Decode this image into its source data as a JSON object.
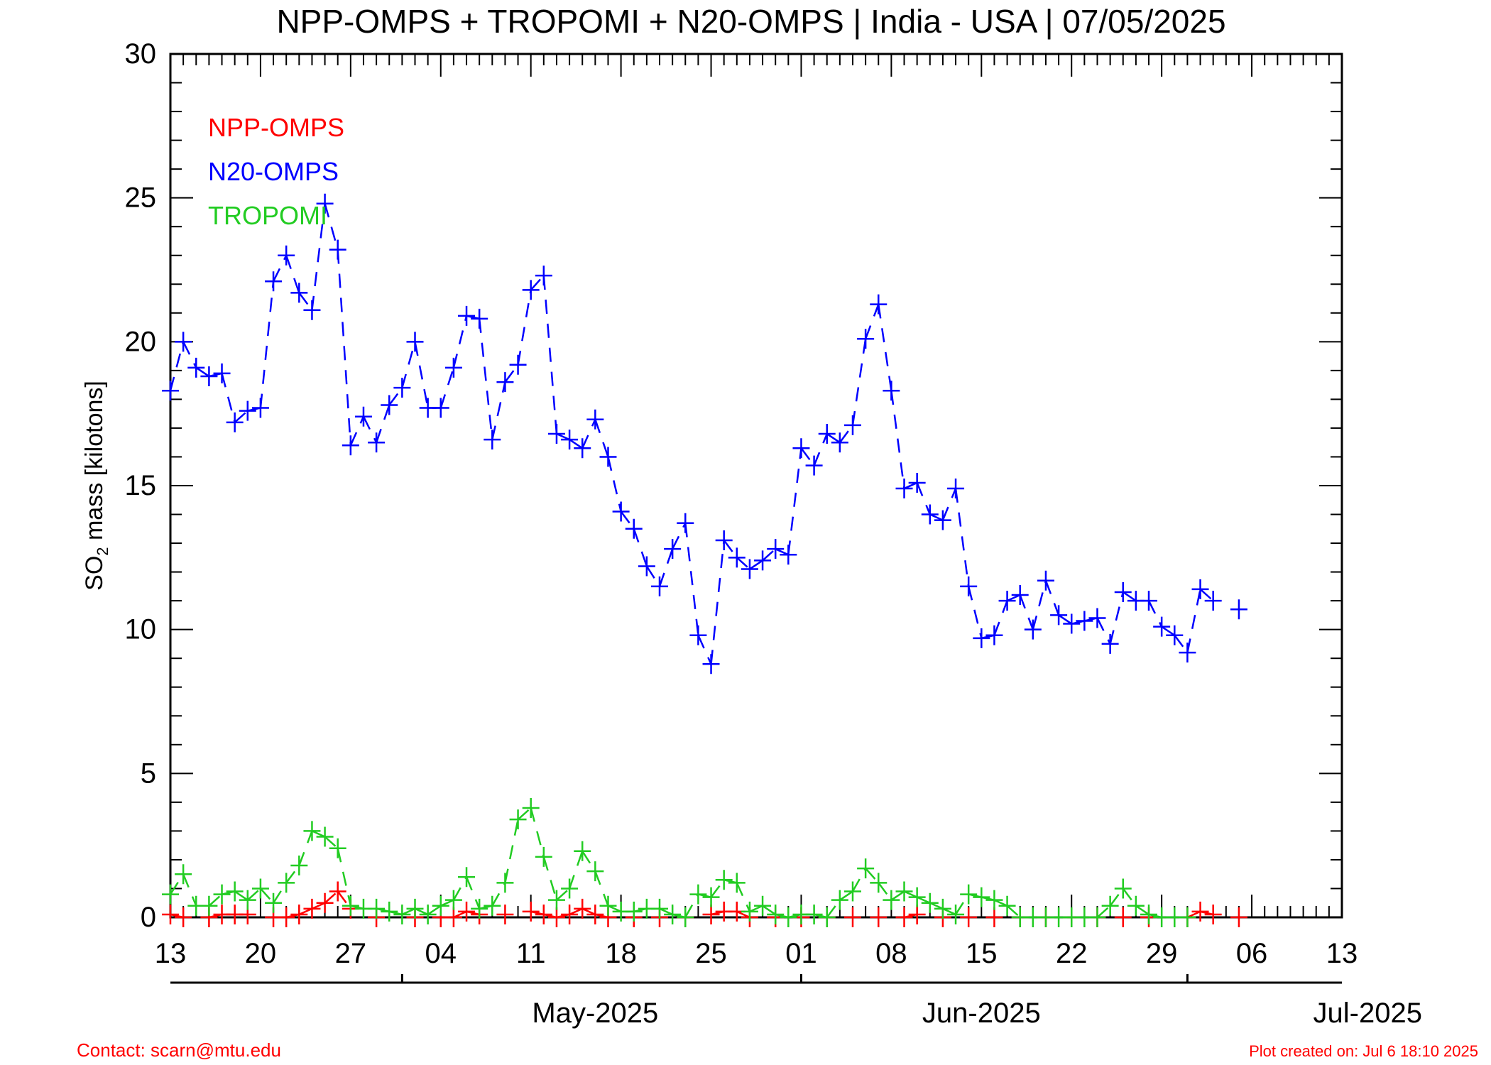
{
  "chart_data": {
    "type": "line",
    "title": "NPP-OMPS + TROPOMI + N20-OMPS | India - USA | 07/05/2025",
    "ylabel_main": "SO",
    "ylabel_sub": "2",
    "ylabel_rest": " mass [kilotons]",
    "ylim": [
      0,
      30
    ],
    "yticks": [
      "0",
      "5",
      "10",
      "15",
      "20",
      "25",
      "30"
    ],
    "xlim": [
      "2025-04-13",
      "2025-07-13"
    ],
    "xtick_dates": [
      "2025-04-13",
      "2025-04-20",
      "2025-04-27",
      "2025-05-04",
      "2025-05-11",
      "2025-05-18",
      "2025-05-25",
      "2025-06-01",
      "2025-06-08",
      "2025-06-15",
      "2025-06-22",
      "2025-06-29",
      "2025-07-06",
      "2025-07-13"
    ],
    "xtick_labels": [
      "13",
      "20",
      "27",
      "04",
      "11",
      "18",
      "25",
      "01",
      "08",
      "15",
      "22",
      "29",
      "06",
      "13"
    ],
    "month_labels": [
      "May-2025",
      "Jun-2025",
      "Jul-2025"
    ],
    "month_dates": [
      "2025-05-01",
      "2025-06-01",
      "2025-07-01"
    ],
    "month_label_dates": [
      "2025-05-16",
      "2025-06-15",
      "2025-07-15"
    ],
    "legend_position": "top-left",
    "series": [
      {
        "name": "NPP-OMPS",
        "color": "#ff0000",
        "values": [
          [
            "2025-04-13",
            0.1
          ],
          [
            "2025-04-14",
            0.0
          ],
          [
            "2025-04-16",
            0.0
          ],
          [
            "2025-04-17",
            0.1
          ],
          [
            "2025-04-18",
            0.1
          ],
          [
            "2025-04-19",
            0.1
          ],
          [
            "2025-04-21",
            0.0
          ],
          [
            "2025-04-22",
            0.0
          ],
          [
            "2025-04-23",
            0.1
          ],
          [
            "2025-04-24",
            0.3
          ],
          [
            "2025-04-25",
            0.5
          ],
          [
            "2025-04-26",
            0.9
          ],
          [
            "2025-04-27",
            0.3
          ],
          [
            "2025-04-29",
            0.0
          ],
          [
            "2025-05-02",
            0.0
          ],
          [
            "2025-05-04",
            0.0
          ],
          [
            "2025-05-05",
            0.0
          ],
          [
            "2025-05-06",
            0.2
          ],
          [
            "2025-05-07",
            0.1
          ],
          [
            "2025-05-09",
            0.1
          ],
          [
            "2025-05-11",
            0.2
          ],
          [
            "2025-05-12",
            0.1
          ],
          [
            "2025-05-13",
            0.0
          ],
          [
            "2025-05-14",
            0.1
          ],
          [
            "2025-05-15",
            0.3
          ],
          [
            "2025-05-16",
            0.1
          ],
          [
            "2025-05-17",
            0.0
          ],
          [
            "2025-05-19",
            0.0
          ],
          [
            "2025-05-21",
            0.0
          ],
          [
            "2025-05-23",
            0.0
          ],
          [
            "2025-05-25",
            0.1
          ],
          [
            "2025-05-26",
            0.2
          ],
          [
            "2025-05-27",
            0.2
          ],
          [
            "2025-05-28",
            0.0
          ],
          [
            "2025-05-30",
            0.0
          ],
          [
            "2025-06-01",
            0.0
          ],
          [
            "2025-06-03",
            0.0
          ],
          [
            "2025-06-05",
            0.0
          ],
          [
            "2025-06-07",
            0.0
          ],
          [
            "2025-06-09",
            0.0
          ],
          [
            "2025-06-10",
            0.1
          ],
          [
            "2025-06-12",
            0.0
          ],
          [
            "2025-06-14",
            0.0
          ],
          [
            "2025-06-16",
            0.0
          ],
          [
            "2025-06-18",
            0.0
          ],
          [
            "2025-06-20",
            0.0
          ],
          [
            "2025-06-22",
            0.0
          ],
          [
            "2025-06-24",
            0.0
          ],
          [
            "2025-06-26",
            0.0
          ],
          [
            "2025-06-28",
            0.0
          ],
          [
            "2025-07-01",
            0.0
          ],
          [
            "2025-07-02",
            0.2
          ],
          [
            "2025-07-03",
            0.1
          ],
          [
            "2025-07-05",
            0.0
          ]
        ]
      },
      {
        "name": "N20-OMPS",
        "color": "#0000ff",
        "values": [
          [
            "2025-04-13",
            18.3
          ],
          [
            "2025-04-14",
            20.0
          ],
          [
            "2025-04-15",
            19.1
          ],
          [
            "2025-04-16",
            18.8
          ],
          [
            "2025-04-17",
            18.9
          ],
          [
            "2025-04-18",
            17.2
          ],
          [
            "2025-04-19",
            17.6
          ],
          [
            "2025-04-20",
            17.7
          ],
          [
            "2025-04-21",
            22.1
          ],
          [
            "2025-04-22",
            23.0
          ],
          [
            "2025-04-23",
            21.7
          ],
          [
            "2025-04-24",
            21.1
          ],
          [
            "2025-04-25",
            24.8
          ],
          [
            "2025-04-26",
            23.2
          ],
          [
            "2025-04-27",
            16.4
          ],
          [
            "2025-04-28",
            17.4
          ],
          [
            "2025-04-29",
            16.5
          ],
          [
            "2025-04-30",
            17.8
          ],
          [
            "2025-05-01",
            18.4
          ],
          [
            "2025-05-02",
            20.0
          ],
          [
            "2025-05-03",
            17.7
          ],
          [
            "2025-05-04",
            17.7
          ],
          [
            "2025-05-05",
            19.1
          ],
          [
            "2025-05-06",
            20.9
          ],
          [
            "2025-05-07",
            20.8
          ],
          [
            "2025-05-08",
            16.6
          ],
          [
            "2025-05-09",
            18.6
          ],
          [
            "2025-05-10",
            19.2
          ],
          [
            "2025-05-11",
            21.8
          ],
          [
            "2025-05-12",
            22.3
          ],
          [
            "2025-05-13",
            16.8
          ],
          [
            "2025-05-14",
            16.6
          ],
          [
            "2025-05-15",
            16.3
          ],
          [
            "2025-05-16",
            17.3
          ],
          [
            "2025-05-17",
            16.0
          ],
          [
            "2025-05-18",
            14.1
          ],
          [
            "2025-05-19",
            13.5
          ],
          [
            "2025-05-20",
            12.2
          ],
          [
            "2025-05-21",
            11.5
          ],
          [
            "2025-05-22",
            12.8
          ],
          [
            "2025-05-23",
            13.7
          ],
          [
            "2025-05-24",
            9.8
          ],
          [
            "2025-05-25",
            8.8
          ],
          [
            "2025-05-26",
            13.1
          ],
          [
            "2025-05-27",
            12.5
          ],
          [
            "2025-05-28",
            12.1
          ],
          [
            "2025-05-29",
            12.4
          ],
          [
            "2025-05-30",
            12.8
          ],
          [
            "2025-05-31",
            12.6
          ],
          [
            "2025-06-01",
            16.3
          ],
          [
            "2025-06-02",
            15.7
          ],
          [
            "2025-06-03",
            16.8
          ],
          [
            "2025-06-04",
            16.5
          ],
          [
            "2025-06-05",
            17.1
          ],
          [
            "2025-06-06",
            20.1
          ],
          [
            "2025-06-07",
            21.3
          ],
          [
            "2025-06-08",
            18.3
          ],
          [
            "2025-06-09",
            14.9
          ],
          [
            "2025-06-10",
            15.1
          ],
          [
            "2025-06-11",
            14.0
          ],
          [
            "2025-06-12",
            13.8
          ],
          [
            "2025-06-13",
            14.9
          ],
          [
            "2025-06-14",
            11.5
          ],
          [
            "2025-06-15",
            9.7
          ],
          [
            "2025-06-16",
            9.8
          ],
          [
            "2025-06-17",
            11.0
          ],
          [
            "2025-06-18",
            11.2
          ],
          [
            "2025-06-19",
            10.0
          ],
          [
            "2025-06-20",
            11.7
          ],
          [
            "2025-06-21",
            10.5
          ],
          [
            "2025-06-22",
            10.2
          ],
          [
            "2025-06-23",
            10.3
          ],
          [
            "2025-06-24",
            10.4
          ],
          [
            "2025-06-25",
            9.5
          ],
          [
            "2025-06-26",
            11.3
          ],
          [
            "2025-06-27",
            11.0
          ],
          [
            "2025-06-28",
            11.0
          ],
          [
            "2025-06-29",
            10.1
          ],
          [
            "2025-06-30",
            9.8
          ],
          [
            "2025-07-01",
            9.2
          ],
          [
            "2025-07-02",
            11.4
          ],
          [
            "2025-07-03",
            11.0
          ],
          [
            "2025-07-05",
            10.7
          ]
        ]
      },
      {
        "name": "TROPOMI",
        "color": "#22cc22",
        "values": [
          [
            "2025-04-13",
            0.8
          ],
          [
            "2025-04-14",
            1.5
          ],
          [
            "2025-04-15",
            0.4
          ],
          [
            "2025-04-16",
            0.4
          ],
          [
            "2025-04-17",
            0.8
          ],
          [
            "2025-04-18",
            0.9
          ],
          [
            "2025-04-19",
            0.6
          ],
          [
            "2025-04-20",
            1.0
          ],
          [
            "2025-04-21",
            0.5
          ],
          [
            "2025-04-22",
            1.2
          ],
          [
            "2025-04-23",
            1.8
          ],
          [
            "2025-04-24",
            3.0
          ],
          [
            "2025-04-25",
            2.8
          ],
          [
            "2025-04-26",
            2.4
          ],
          [
            "2025-04-27",
            0.4
          ],
          [
            "2025-04-28",
            0.3
          ],
          [
            "2025-04-29",
            0.3
          ],
          [
            "2025-04-30",
            0.2
          ],
          [
            "2025-05-01",
            0.1
          ],
          [
            "2025-05-02",
            0.3
          ],
          [
            "2025-05-03",
            0.1
          ],
          [
            "2025-05-04",
            0.4
          ],
          [
            "2025-05-05",
            0.6
          ],
          [
            "2025-05-06",
            1.4
          ],
          [
            "2025-05-07",
            0.3
          ],
          [
            "2025-05-08",
            0.4
          ],
          [
            "2025-05-09",
            1.2
          ],
          [
            "2025-05-10",
            3.4
          ],
          [
            "2025-05-11",
            3.8
          ],
          [
            "2025-05-12",
            2.1
          ],
          [
            "2025-05-13",
            0.6
          ],
          [
            "2025-05-14",
            1.0
          ],
          [
            "2025-05-15",
            2.3
          ],
          [
            "2025-05-16",
            1.6
          ],
          [
            "2025-05-17",
            0.4
          ],
          [
            "2025-05-18",
            0.2
          ],
          [
            "2025-05-19",
            0.2
          ],
          [
            "2025-05-20",
            0.3
          ],
          [
            "2025-05-21",
            0.3
          ],
          [
            "2025-05-22",
            0.1
          ],
          [
            "2025-05-23",
            0.0
          ],
          [
            "2025-05-24",
            0.8
          ],
          [
            "2025-05-25",
            0.7
          ],
          [
            "2025-05-26",
            1.3
          ],
          [
            "2025-05-27",
            1.2
          ],
          [
            "2025-05-28",
            0.2
          ],
          [
            "2025-05-29",
            0.4
          ],
          [
            "2025-05-30",
            0.1
          ],
          [
            "2025-05-31",
            0.0
          ],
          [
            "2025-06-01",
            0.1
          ],
          [
            "2025-06-02",
            0.1
          ],
          [
            "2025-06-03",
            0.0
          ],
          [
            "2025-06-04",
            0.6
          ],
          [
            "2025-06-05",
            0.9
          ],
          [
            "2025-06-06",
            1.7
          ],
          [
            "2025-06-07",
            1.2
          ],
          [
            "2025-06-08",
            0.6
          ],
          [
            "2025-06-09",
            0.9
          ],
          [
            "2025-06-10",
            0.7
          ],
          [
            "2025-06-11",
            0.5
          ],
          [
            "2025-06-12",
            0.3
          ],
          [
            "2025-06-13",
            0.1
          ],
          [
            "2025-06-14",
            0.8
          ],
          [
            "2025-06-15",
            0.7
          ],
          [
            "2025-06-16",
            0.6
          ],
          [
            "2025-06-17",
            0.4
          ],
          [
            "2025-06-18",
            0.0
          ],
          [
            "2025-06-19",
            0.0
          ],
          [
            "2025-06-20",
            0.0
          ],
          [
            "2025-06-21",
            0.0
          ],
          [
            "2025-06-22",
            0.0
          ],
          [
            "2025-06-23",
            0.0
          ],
          [
            "2025-06-24",
            0.0
          ],
          [
            "2025-06-25",
            0.4
          ],
          [
            "2025-06-26",
            1.0
          ],
          [
            "2025-06-27",
            0.4
          ],
          [
            "2025-06-28",
            0.1
          ],
          [
            "2025-06-29",
            0.0
          ],
          [
            "2025-06-30",
            0.0
          ],
          [
            "2025-07-01",
            0.0
          ]
        ]
      }
    ]
  },
  "footer": {
    "contact": "Contact: scarn@mtu.edu",
    "created": "Plot created on: Jul  6 18:10 2025"
  }
}
